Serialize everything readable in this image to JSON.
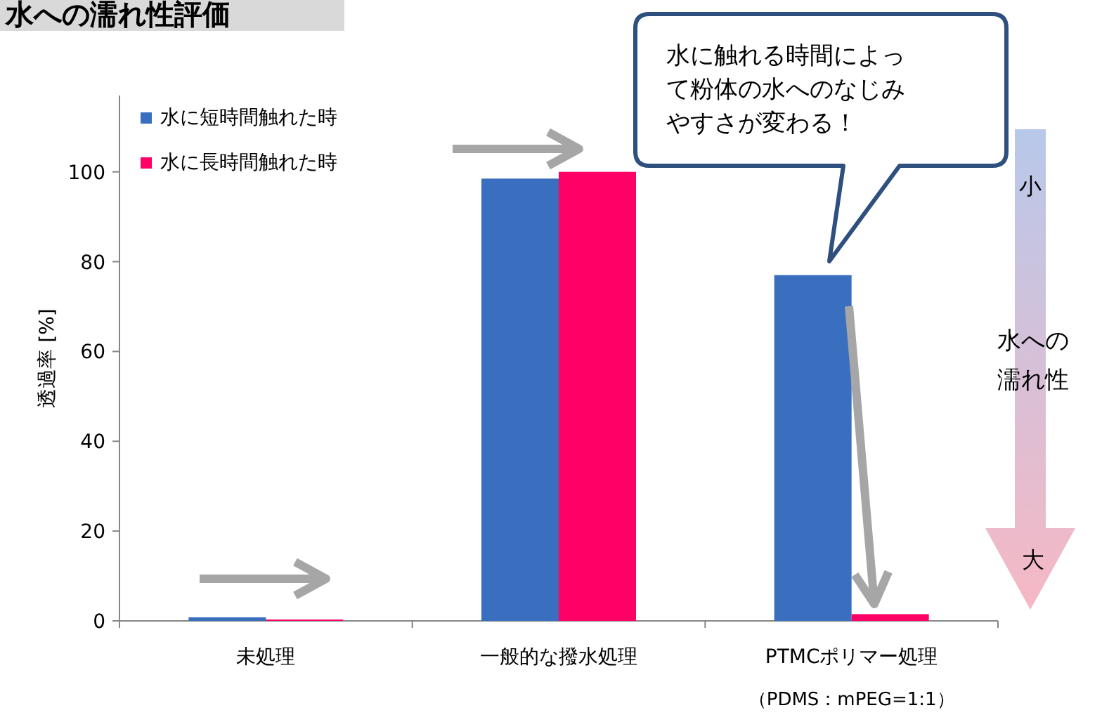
{
  "chart_data": {
    "type": "bar",
    "title": "水への濡れ性評価",
    "ylabel": "透過率 [%]",
    "categories": [
      "未処理",
      "一般的な撥水処理",
      "PTMCポリマー処理"
    ],
    "series": [
      {
        "name": "水に短時間触れた時",
        "color": "#3a6fbf",
        "values": [
          0.8,
          98.5,
          77
        ]
      },
      {
        "name": "水に長時間触れた時",
        "color": "#ff0066",
        "values": [
          0.3,
          100,
          1.5
        ]
      }
    ],
    "ylim": [
      0,
      117
    ],
    "yticks": [
      0,
      20,
      40,
      60,
      80,
      100
    ],
    "legend": "top left",
    "annotations": [
      "（PDMS：mPEG=1:1）",
      "水に触れる時間によって粉体の水へのなじみやすさが変わる！",
      "小",
      "水への濡れ性",
      "大"
    ]
  }
}
